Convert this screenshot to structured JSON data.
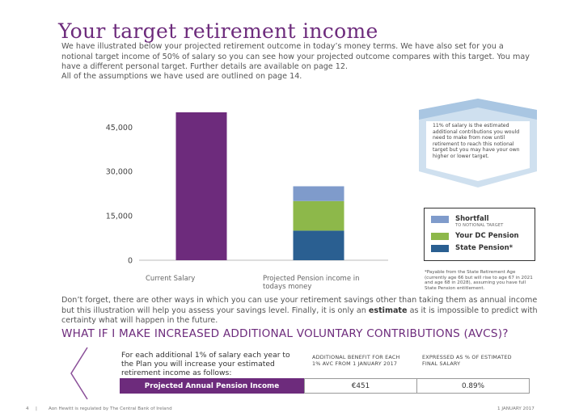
{
  "header": {
    "title": "Your target retirement income"
  },
  "intro": {
    "paragraph": "We have illustrated below your projected retirement outcome in today’s money terms. We have also set for you a notional target income of 50% of salary so you can see how your projected outcome compares with this target. You may have a different personal target. Further details are available on page 12.",
    "assumptions": "All of the assumptions we have used are outlined on page 14."
  },
  "chart_data": {
    "type": "stacked_bar",
    "categories": [
      "Current Salary",
      "Projected Pension income in todays money"
    ],
    "salary_values": [
      50000,
      null
    ],
    "salary_color": "#6d2b7c",
    "series": [
      {
        "name": "State Pension*",
        "color": "#2a5f91",
        "values": [
          null,
          10000
        ]
      },
      {
        "name": "Your DC Pension",
        "color": "#8db84a",
        "values": [
          null,
          10000
        ]
      },
      {
        "name": "Shortfall",
        "note": "TO NOTIONAL TARGET",
        "color": "#7f9bcb",
        "values": [
          null,
          5000
        ]
      }
    ],
    "ylim": [
      0,
      50000
    ],
    "yticks": [
      0,
      {
        "value": 15000,
        "label": "15,000"
      },
      {
        "value": 30000,
        "label": "30,000"
      },
      {
        "value": 45000,
        "label": "45,000"
      }
    ],
    "grid": false,
    "callout": "11% of salary is the estimated additional contributions you would need to make from now until retirement to reach this notional target but you may have your own higher or lower target.",
    "footnote": "*Payable from the State Retirement Age (currently age 66 but will rise to age 67 in 2021 and age 68 in 2028), assuming you have full State Pension entitlement."
  },
  "reminder": {
    "before": "Don’t forget, there are other ways in which you can use your retirement savings other than taking them as annual income but this illustration will help you assess your savings level. Finally, it is only an ",
    "bold": "estimate",
    "after": " as it is impossible to predict with certainty what will happen in the future."
  },
  "avc": {
    "heading": "WHAT IF I MAKE INCREASED ADDITIONAL VOLUNTARY CONTRIBUTIONS (AVCS)?",
    "intro": "For each additional 1% of salary each year to the Plan you will increase your estimated retirement income as follows:",
    "columns": [
      "ADDITIONAL BENEFIT FOR EACH 1% AVC FROM 1 JANUARY 2017",
      "EXPRESSED AS % OF ESTIMATED FINAL SALARY"
    ],
    "row": {
      "label": "Projected Annual Pension Income",
      "cells": [
        "€451",
        "0.89%"
      ]
    }
  },
  "footer": {
    "page": "4",
    "separator": "|",
    "text": "Aon Hewitt is regulated by The Central Bank of Ireland",
    "date": "1 JANUARY 2017"
  }
}
